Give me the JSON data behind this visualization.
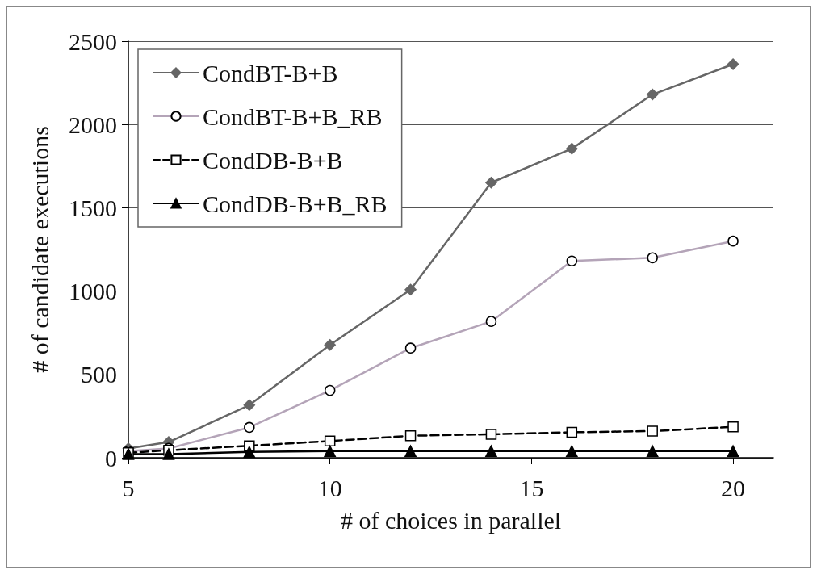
{
  "chart_data": {
    "type": "line",
    "xlabel": "# of choices in parallel",
    "ylabel": "# of candidate executions",
    "x": [
      5,
      6,
      8,
      10,
      12,
      14,
      16,
      18,
      20
    ],
    "xlim": [
      5,
      21
    ],
    "xticks": [
      5,
      10,
      15,
      20
    ],
    "ylim": [
      0,
      2500
    ],
    "yticks": [
      0,
      500,
      1000,
      1500,
      2000,
      2500
    ],
    "grid": "y",
    "legend": "top left",
    "series": [
      {
        "name": "CondBT-B+B",
        "color": "#666666",
        "marker": "diamond",
        "line_style": "solid",
        "values": [
          56,
          94,
          316,
          677,
          1009,
          1651,
          1855,
          2180,
          2362
        ]
      },
      {
        "name": "CondBT-B+B_RB",
        "color": "#b4a4b8",
        "marker": "circle",
        "line_style": "solid",
        "values": [
          40,
          56,
          182,
          404,
          658,
          818,
          1181,
          1200,
          1300
        ]
      },
      {
        "name": "CondDB-B+B",
        "color": "#000000",
        "marker": "square",
        "line_style": "dashed",
        "values": [
          30,
          45,
          72,
          100,
          132,
          141,
          153,
          160,
          185
        ]
      },
      {
        "name": "CondDB-B+B_RB",
        "color": "#000000",
        "marker": "triangle",
        "line_style": "solid",
        "values": [
          22,
          22,
          35,
          40,
          40,
          40,
          40,
          40,
          40
        ]
      }
    ]
  }
}
